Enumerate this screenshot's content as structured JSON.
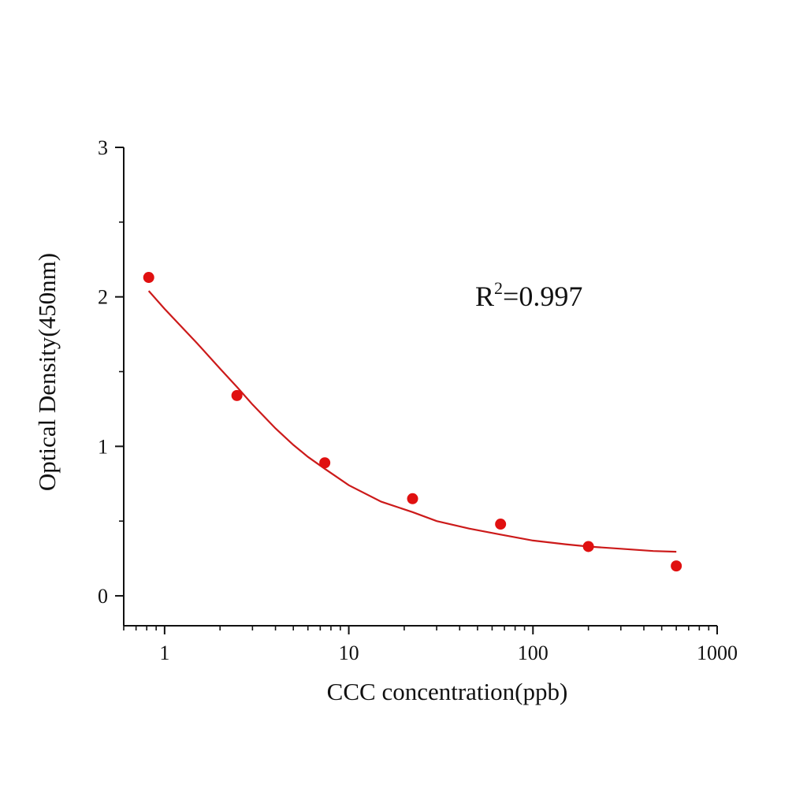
{
  "chart_data": {
    "type": "scatter",
    "title": "",
    "xlabel": "CCC concentration(ppb)",
    "ylabel": "Optical Density(450nm)",
    "xscale": "log",
    "xlim": [
      0.6,
      1000
    ],
    "ylim": [
      -0.2,
      3
    ],
    "x_ticks": [
      1,
      10,
      100,
      1000
    ],
    "x_tick_labels": [
      "1",
      "10",
      "100",
      "1000"
    ],
    "y_ticks": [
      0,
      1,
      2,
      3
    ],
    "y_tick_labels": [
      "0",
      "1",
      "2",
      "3"
    ],
    "grid": false,
    "colors": {
      "series": "#e01010",
      "fit": "#cc1a1a",
      "axis": "#111111"
    },
    "series": [
      {
        "x": [
          0.82,
          2.47,
          7.41,
          22.2,
          66.7,
          200,
          600
        ],
        "y": [
          2.13,
          1.34,
          0.89,
          0.65,
          0.48,
          0.33,
          0.2
        ]
      }
    ],
    "fit_curve": {
      "x": [
        0.82,
        1,
        1.5,
        2,
        2.5,
        3,
        4,
        5,
        6,
        7.41,
        10,
        15,
        22.2,
        30,
        45,
        66.7,
        100,
        150,
        200,
        300,
        450,
        600
      ],
      "y": [
        2.04,
        1.92,
        1.69,
        1.52,
        1.39,
        1.28,
        1.12,
        1.01,
        0.93,
        0.85,
        0.74,
        0.63,
        0.56,
        0.5,
        0.45,
        0.41,
        0.37,
        0.345,
        0.33,
        0.315,
        0.3,
        0.295
      ]
    },
    "annotation": {
      "r2_prefix": "R",
      "r2_sup": "2",
      "r2_value": "=0.997"
    }
  }
}
